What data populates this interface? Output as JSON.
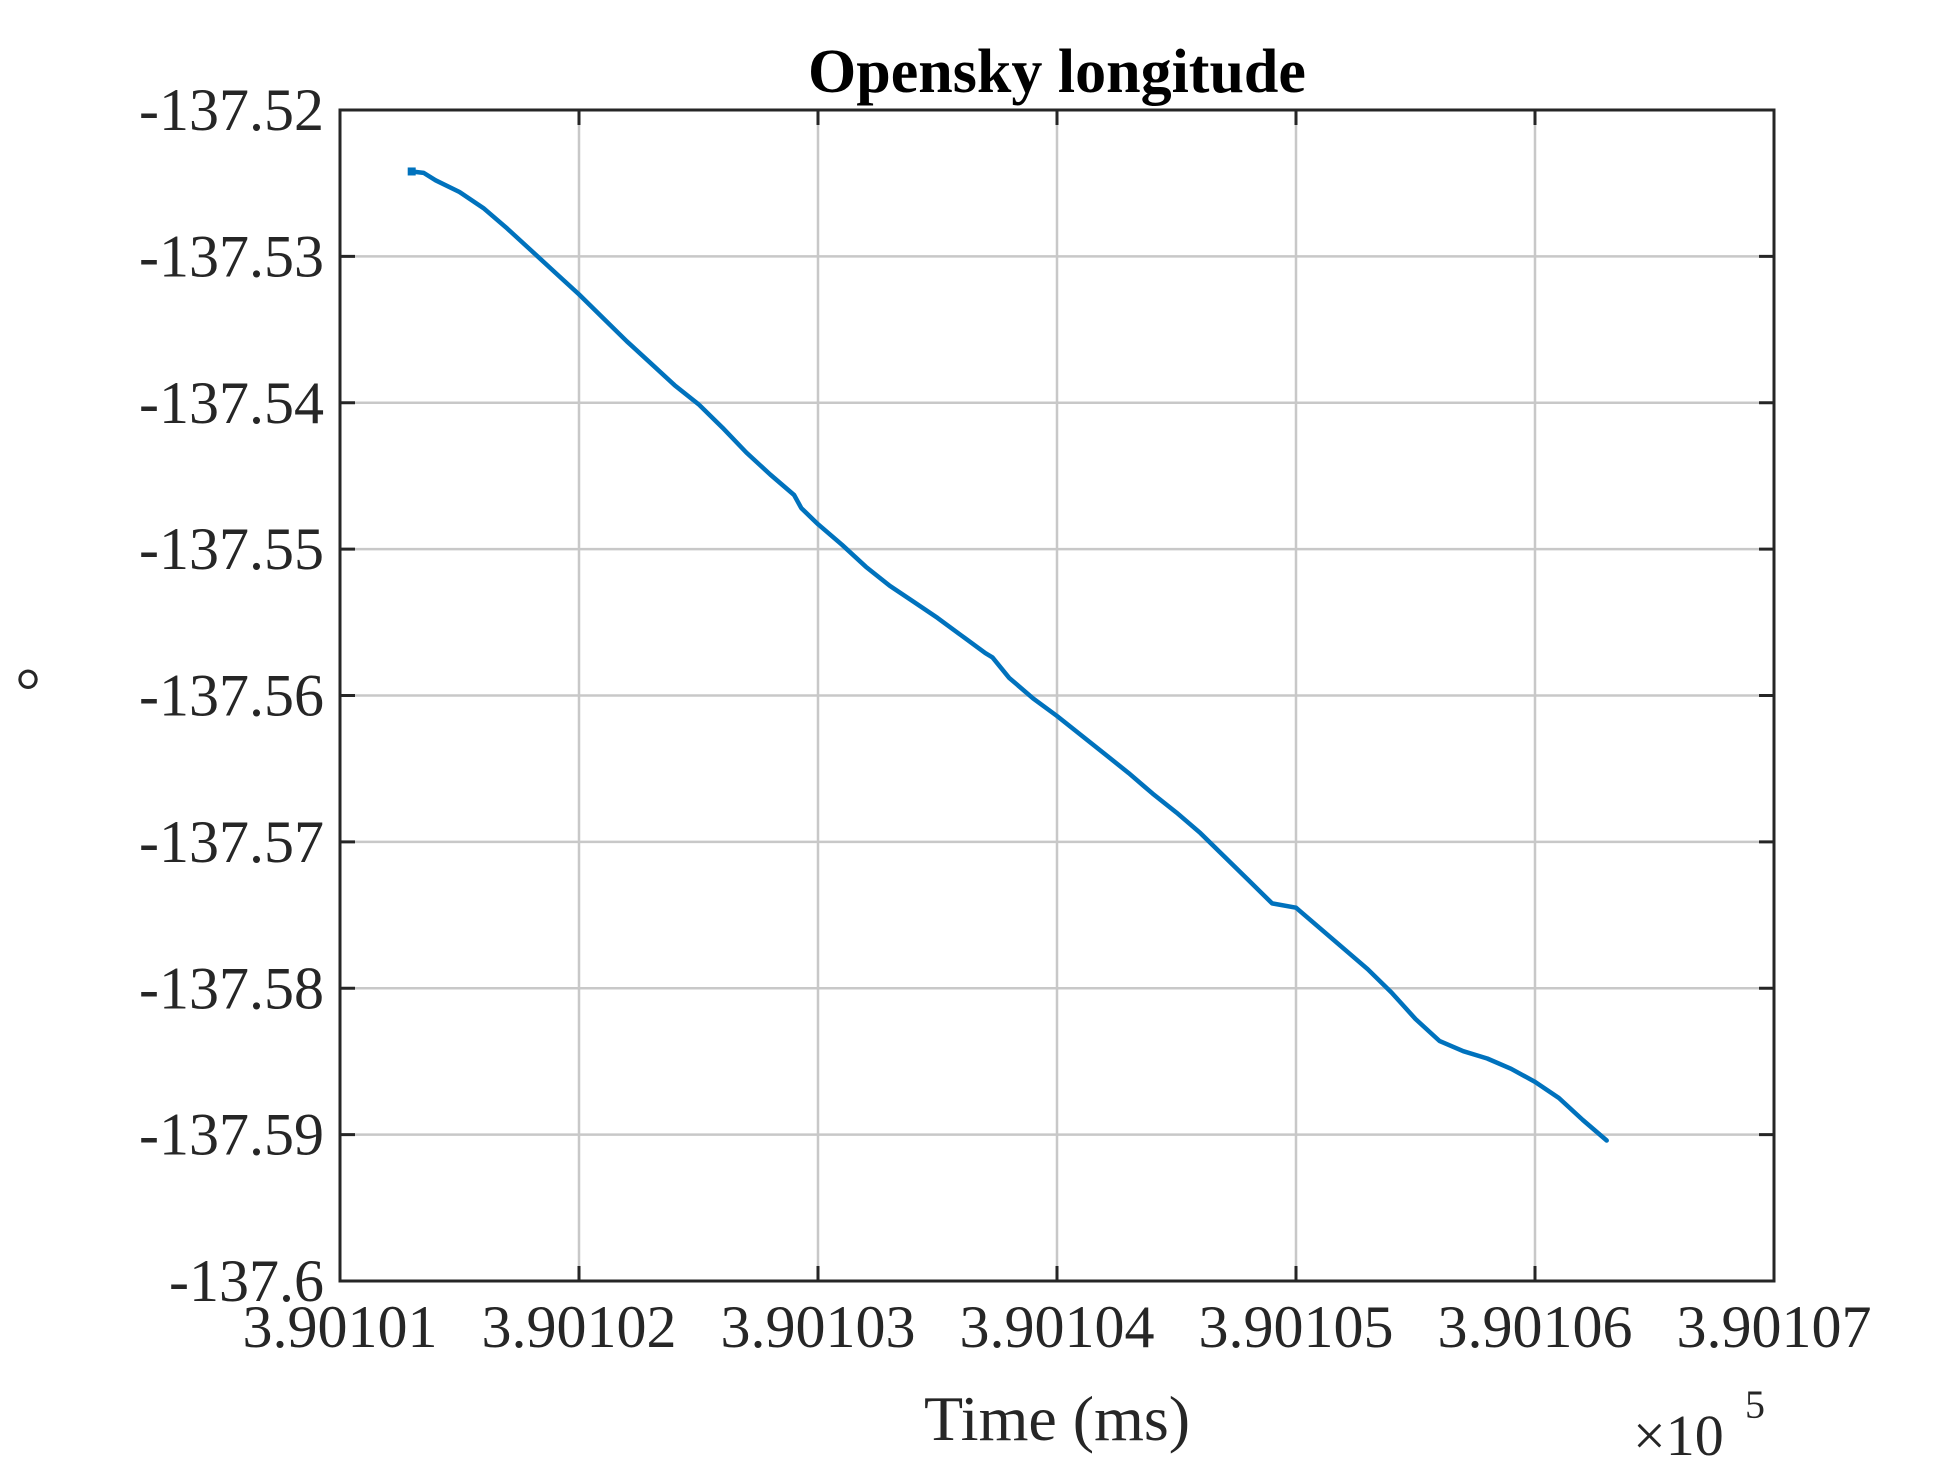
{
  "chart_data": {
    "type": "line",
    "title": "Opensky longitude",
    "xlabel": "Time (ms)",
    "ylabel": "°",
    "x_exponent_base": "×10",
    "x_exponent_power": "5",
    "xlim": [
      3.90101,
      3.90107
    ],
    "ylim": [
      -137.6,
      -137.52
    ],
    "x_ticks": [
      3.90101,
      3.90102,
      3.90103,
      3.90104,
      3.90105,
      3.90106,
      3.90107
    ],
    "x_tick_labels": [
      "3.90101",
      "3.90102",
      "3.90103",
      "3.90104",
      "3.90105",
      "3.90106",
      "3.90107"
    ],
    "y_ticks": [
      -137.52,
      -137.53,
      -137.54,
      -137.55,
      -137.56,
      -137.57,
      -137.58,
      -137.59,
      -137.6
    ],
    "y_tick_labels": [
      "-137.52",
      "-137.53",
      "-137.54",
      "-137.55",
      "-137.56",
      "-137.57",
      "-137.58",
      "-137.59",
      "-137.6"
    ],
    "grid": true,
    "series": [
      {
        "color": "#0072BD",
        "x": [
          3.901013,
          3.9010135,
          3.901014,
          3.901015,
          3.901016,
          3.901017,
          3.901018,
          3.901019,
          3.90102,
          3.901021,
          3.901022,
          3.901023,
          3.901024,
          3.901025,
          3.901026,
          3.901027,
          3.901028,
          3.901029,
          3.9010293,
          3.90103,
          3.901031,
          3.901032,
          3.901033,
          3.901034,
          3.901035,
          3.901036,
          3.901037,
          3.9010373,
          3.901038,
          3.901039,
          3.90104,
          3.901041,
          3.901042,
          3.901043,
          3.901044,
          3.901045,
          3.901046,
          3.901047,
          3.901048,
          3.901049,
          3.90105,
          3.901051,
          3.901052,
          3.901053,
          3.901054,
          3.901055,
          3.901056,
          3.901057,
          3.901058,
          3.901059,
          3.90106,
          3.901061,
          3.901062,
          3.901063
        ],
        "y": [
          -137.5242,
          -137.5243,
          -137.5248,
          -137.5256,
          -137.5267,
          -137.5281,
          -137.5296,
          -137.5311,
          -137.5326,
          -137.5342,
          -137.5358,
          -137.5373,
          -137.5388,
          -137.5401,
          -137.5417,
          -137.5434,
          -137.5449,
          -137.5463,
          -137.5472,
          -137.5483,
          -137.5497,
          -137.5512,
          -137.5525,
          -137.5536,
          -137.5547,
          -137.5559,
          -137.5571,
          -137.5574,
          -137.5588,
          -137.5602,
          -137.5614,
          -137.5627,
          -137.564,
          -137.5653,
          -137.5667,
          -137.568,
          -137.5694,
          -137.571,
          -137.5726,
          -137.5742,
          -137.5745,
          -137.5759,
          -137.5773,
          -137.5787,
          -137.5803,
          -137.5821,
          -137.5836,
          -137.5843,
          -137.5848,
          -137.5855,
          -137.5864,
          -137.5875,
          -137.589,
          -137.5904
        ]
      }
    ]
  }
}
